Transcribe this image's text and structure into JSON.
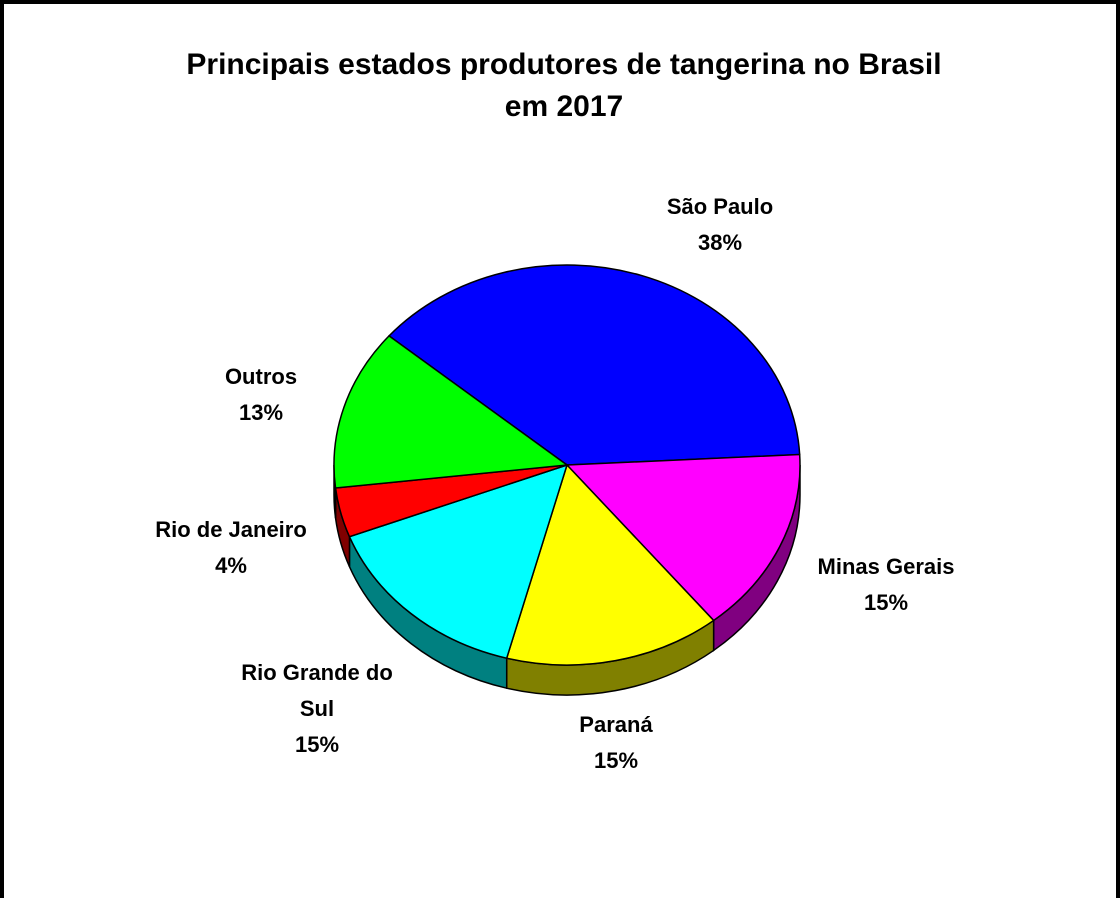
{
  "chart_data": {
    "type": "pie",
    "title_lines": [
      "Principais estados produtores de tangerina no Brasil",
      "em 2017"
    ],
    "slices": [
      {
        "label_lines": [
          "São Paulo"
        ],
        "value_label": "38%",
        "value": 38,
        "color": "#0000FF",
        "side_color": "#000080"
      },
      {
        "label_lines": [
          "Minas Gerais"
        ],
        "value_label": "15%",
        "value": 15,
        "color": "#FF00FF",
        "side_color": "#800080"
      },
      {
        "label_lines": [
          "Paraná"
        ],
        "value_label": "15%",
        "value": 15,
        "color": "#FFFF00",
        "side_color": "#808000"
      },
      {
        "label_lines": [
          "Rio Grande do",
          "Sul"
        ],
        "value_label": "15%",
        "value": 15,
        "color": "#00FFFF",
        "side_color": "#008080"
      },
      {
        "label_lines": [
          "Rio de Janeiro"
        ],
        "value_label": "4%",
        "value": 4,
        "color": "#FF0000",
        "side_color": "#800000"
      },
      {
        "label_lines": [
          "Outros"
        ],
        "value_label": "13%",
        "value": 13,
        "color": "#00FF00",
        "side_color": "#008000"
      }
    ]
  }
}
